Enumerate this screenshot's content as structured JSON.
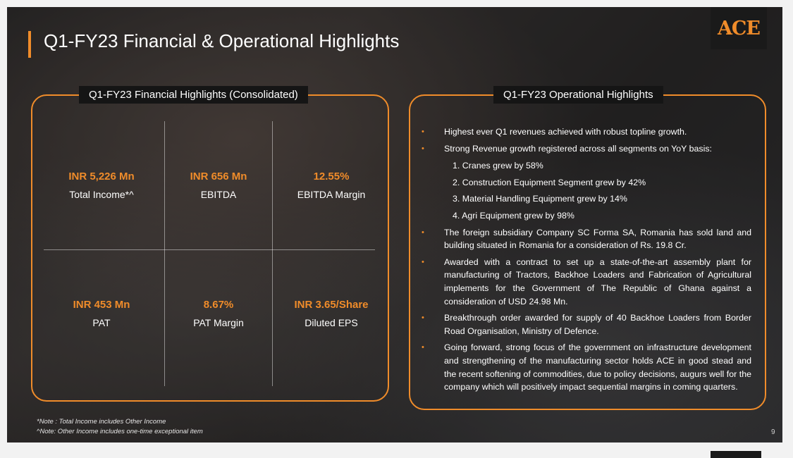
{
  "slide": {
    "title": "Q1-FY23 Financial & Operational Highlights",
    "logo_text": "ACE",
    "page_number": "9",
    "accent_color": "#f08c2a"
  },
  "financial": {
    "label": "Q1-FY23 Financial Highlights (Consolidated)",
    "metrics": [
      {
        "value": "INR 5,226 Mn",
        "label": "Total Income*^"
      },
      {
        "value": "INR 656 Mn",
        "label": "EBITDA"
      },
      {
        "value": "12.55%",
        "label": "EBITDA Margin"
      },
      {
        "value": "INR 453 Mn",
        "label": "PAT"
      },
      {
        "value": "8.67%",
        "label": "PAT Margin"
      },
      {
        "value": "INR 3.65/Share",
        "label": "Diluted EPS"
      }
    ]
  },
  "operational": {
    "label": "Q1-FY23 Operational Highlights",
    "bullet_glyph": "•",
    "items": [
      "Highest ever Q1 revenues achieved with robust topline growth.",
      "Strong Revenue growth registered across all segments on YoY basis:",
      "The foreign subsidiary Company SC Forma SA, Romania has sold land and building situated in Romania for a consideration of Rs. 19.8 Cr.",
      "Awarded with a contract to set up a state-of-the-art assembly plant for manufacturing of Tractors, Backhoe Loaders and Fabrication of Agricultural implements for the Government of The Republic of Ghana against a consideration of USD 24.98 Mn.",
      "Breakthrough order awarded for supply of 40 Backhoe Loaders from Border Road Organisation, Ministry of Defence.",
      "Going forward, strong focus of the government on infrastructure development and strengthening of the manufacturing sector holds ACE in good stead and the recent softening of commodities, due to policy decisions, augurs well for the company which will positively impact sequential margins in coming quarters."
    ],
    "segments": [
      "1. Cranes grew by 58%",
      "2. Construction Equipment Segment grew by 42%",
      "3. Material Handling Equipment grew by 14%",
      "4. Agri Equipment grew by 98%"
    ]
  },
  "notes": [
    "*Note : Total Income includes Other Income",
    "^Note: Other Income includes one-time exceptional item"
  ]
}
